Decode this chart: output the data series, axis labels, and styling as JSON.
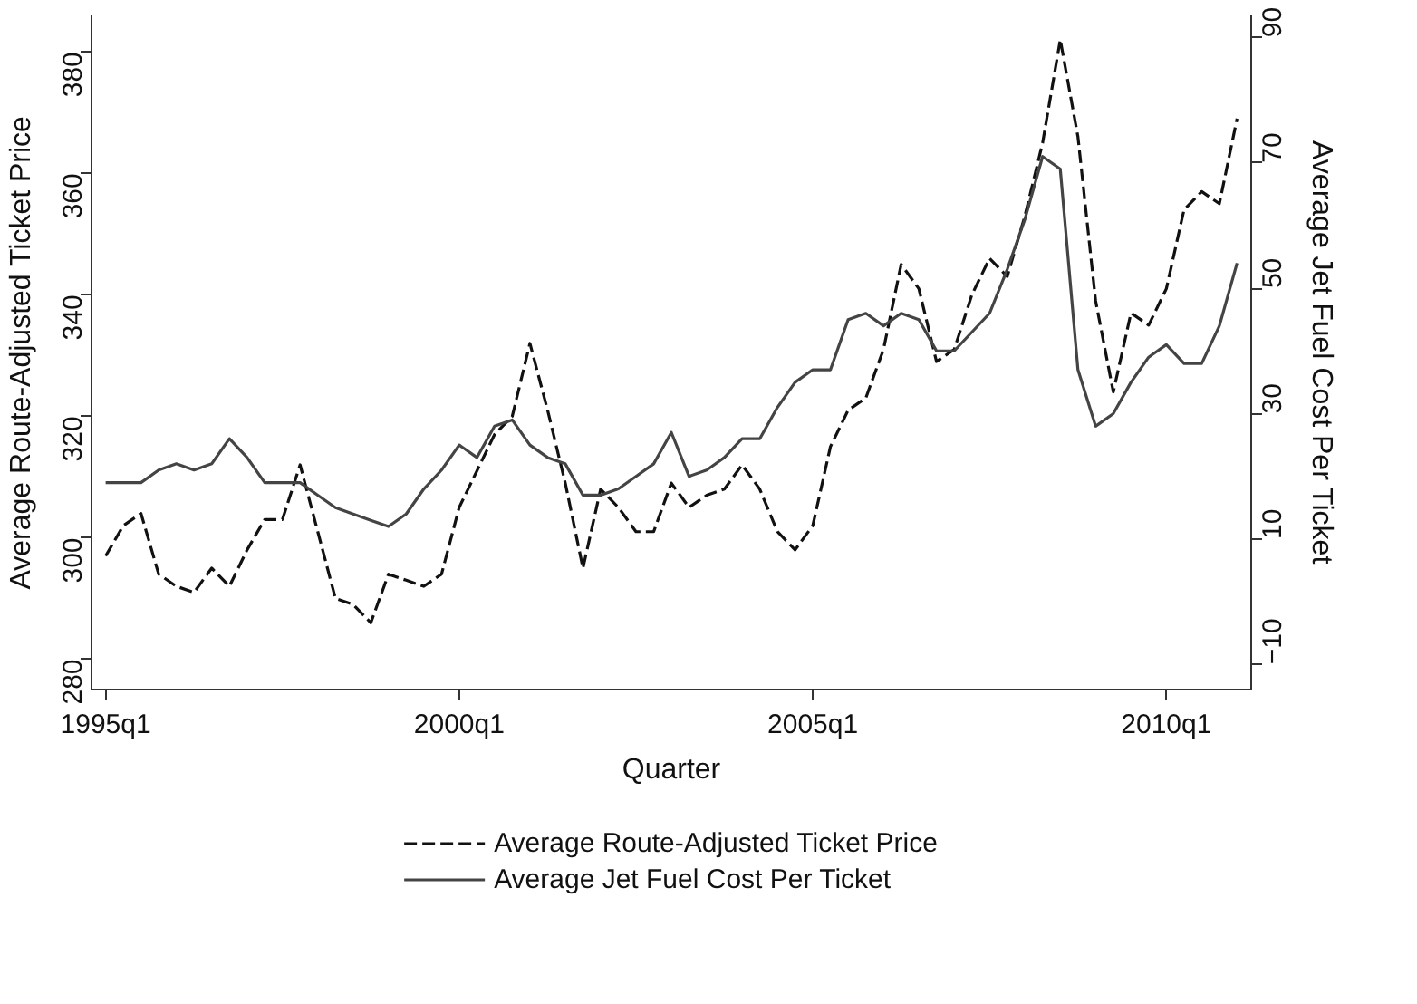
{
  "chart_data": {
    "type": "line",
    "xlabel": "Quarter",
    "ylabel": "Average Route-Adjusted Ticket Price",
    "y2label": "Average Jet Fuel Cost Per Ticket",
    "categories": [
      "1995q1",
      null,
      null,
      null,
      null,
      null,
      null,
      null,
      null,
      null,
      null,
      null,
      null,
      null,
      null,
      null,
      null,
      null,
      null,
      null,
      "2000q1",
      null,
      null,
      null,
      null,
      null,
      null,
      null,
      null,
      null,
      null,
      null,
      null,
      null,
      null,
      null,
      null,
      null,
      null,
      null,
      "2005q1",
      null,
      null,
      null,
      null,
      null,
      null,
      null,
      null,
      null,
      null,
      null,
      null,
      null,
      null,
      null,
      null,
      null,
      null,
      null,
      "2010q1",
      null,
      null,
      null,
      null
    ],
    "series": [
      {
        "name": "Average Route-Adjusted Ticket Price",
        "color": "#111111",
        "line_style": "dashed",
        "values": [
          297,
          302,
          304,
          294,
          292,
          291,
          295,
          292,
          298,
          303,
          303,
          312,
          301,
          290,
          289,
          286,
          294,
          293,
          292,
          294,
          305,
          311,
          317,
          320,
          332,
          321,
          309,
          295,
          308,
          305,
          301,
          301,
          309,
          305,
          307,
          308,
          312,
          308,
          301,
          298,
          302,
          315,
          321,
          323,
          331,
          345,
          341,
          329,
          331,
          340,
          346,
          343,
          353,
          365,
          382,
          366,
          339,
          324,
          337,
          335,
          341,
          354,
          357,
          355,
          369
        ]
      },
      {
        "name": "Average Jet Fuel Cost Per Ticket",
        "color": "#444444",
        "line_style": "solid",
        "axis": "y2",
        "values": [
          19,
          19,
          19,
          21,
          22,
          21,
          22,
          26,
          23,
          19,
          19,
          19,
          17,
          15,
          14,
          13,
          12,
          14,
          18,
          21,
          25,
          23,
          28,
          29,
          25,
          23,
          22,
          17,
          17,
          18,
          20,
          22,
          27,
          20,
          21,
          23,
          26,
          26,
          31,
          35,
          37,
          37,
          45,
          46,
          44,
          46,
          45,
          40,
          40,
          43,
          46,
          53,
          61,
          71,
          69,
          37,
          28,
          30,
          35,
          39,
          41,
          38,
          38,
          44,
          54
        ]
      }
    ],
    "ylim": [
      275,
      386
    ],
    "y2lim": [
      -14,
      93.5
    ],
    "yticks": [
      280,
      300,
      320,
      340,
      360,
      380
    ],
    "y2ticks": [
      -10,
      10,
      30,
      50,
      70,
      90
    ],
    "grid": false,
    "legend": "bottom",
    "marker": "none"
  }
}
